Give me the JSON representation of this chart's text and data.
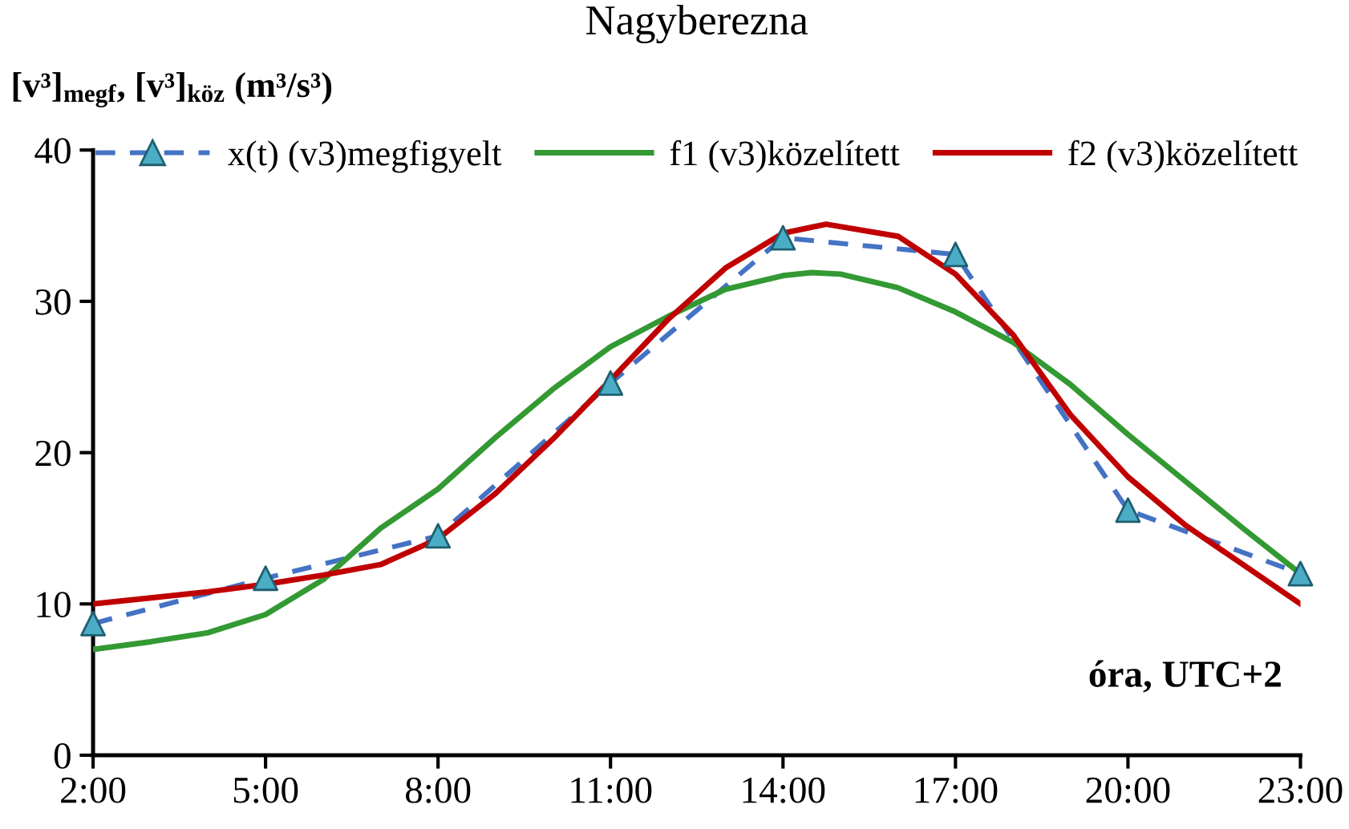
{
  "chart_data": {
    "type": "line",
    "title": "Nagyberezna",
    "ylabel": "[v³]$_{megf}$, [v³]$_{köz}$ (m³/s³)",
    "xlabel": "óra, UTC+2",
    "xlim": [
      2,
      23
    ],
    "xticks": [
      {
        "value": 2,
        "label": "2:00"
      },
      {
        "value": 5,
        "label": "5:00"
      },
      {
        "value": 8,
        "label": "8:00"
      },
      {
        "value": 11,
        "label": "11:00"
      },
      {
        "value": 14,
        "label": "14:00"
      },
      {
        "value": 17,
        "label": "17:00"
      },
      {
        "value": 20,
        "label": "20:00"
      },
      {
        "value": 23,
        "label": "23:00"
      }
    ],
    "ylim": [
      0,
      40
    ],
    "yticks": [
      0,
      10,
      20,
      30,
      40
    ],
    "grid": false,
    "legend": "top",
    "series": [
      {
        "name": "x(t) (v3)megfigyelt",
        "color": "#4472c4",
        "colors": [
          "#4bacc6",
          "#4bacc6",
          "#4bacc6",
          "#4bacc6",
          "#4bacc6",
          "#4bacc6",
          "#4bacc6",
          "#4bacc6"
        ],
        "marker": "triangle",
        "line_style": "dashed",
        "x": [
          2,
          5,
          8,
          11,
          14,
          17,
          20,
          23
        ],
        "values": [
          8.7,
          11.7,
          14.5,
          24.6,
          34.2,
          33.1,
          16.2,
          12.0
        ]
      },
      {
        "name": "f1 (v3)közelített",
        "color": "#339933",
        "marker": "none",
        "line_style": "solid",
        "x": [
          2,
          3,
          4,
          5,
          6,
          7,
          8,
          9,
          10,
          11,
          12,
          13,
          14,
          14.5,
          15,
          16,
          17,
          18,
          19,
          20,
          21,
          22,
          23
        ],
        "values": [
          7.0,
          7.5,
          8.1,
          9.3,
          11.6,
          15.0,
          17.6,
          21.0,
          24.2,
          27.0,
          29.0,
          30.8,
          31.7,
          31.9,
          31.8,
          30.9,
          29.3,
          27.3,
          24.5,
          21.2,
          18.1,
          15.0,
          12.0
        ]
      },
      {
        "name": "f2 (v3)közelített",
        "color": "#c00000",
        "marker": "none",
        "line_style": "solid",
        "x": [
          2,
          3,
          4,
          5,
          6,
          7,
          8,
          9,
          10,
          11,
          12,
          13,
          14,
          14.75,
          16,
          17,
          18,
          19,
          20,
          21,
          22,
          23
        ],
        "values": [
          10.0,
          10.4,
          10.8,
          11.3,
          11.9,
          12.6,
          14.3,
          17.3,
          20.9,
          24.8,
          28.8,
          32.2,
          34.5,
          35.1,
          34.3,
          31.8,
          27.8,
          22.5,
          18.4,
          15.2,
          12.6,
          10.0
        ]
      }
    ]
  }
}
